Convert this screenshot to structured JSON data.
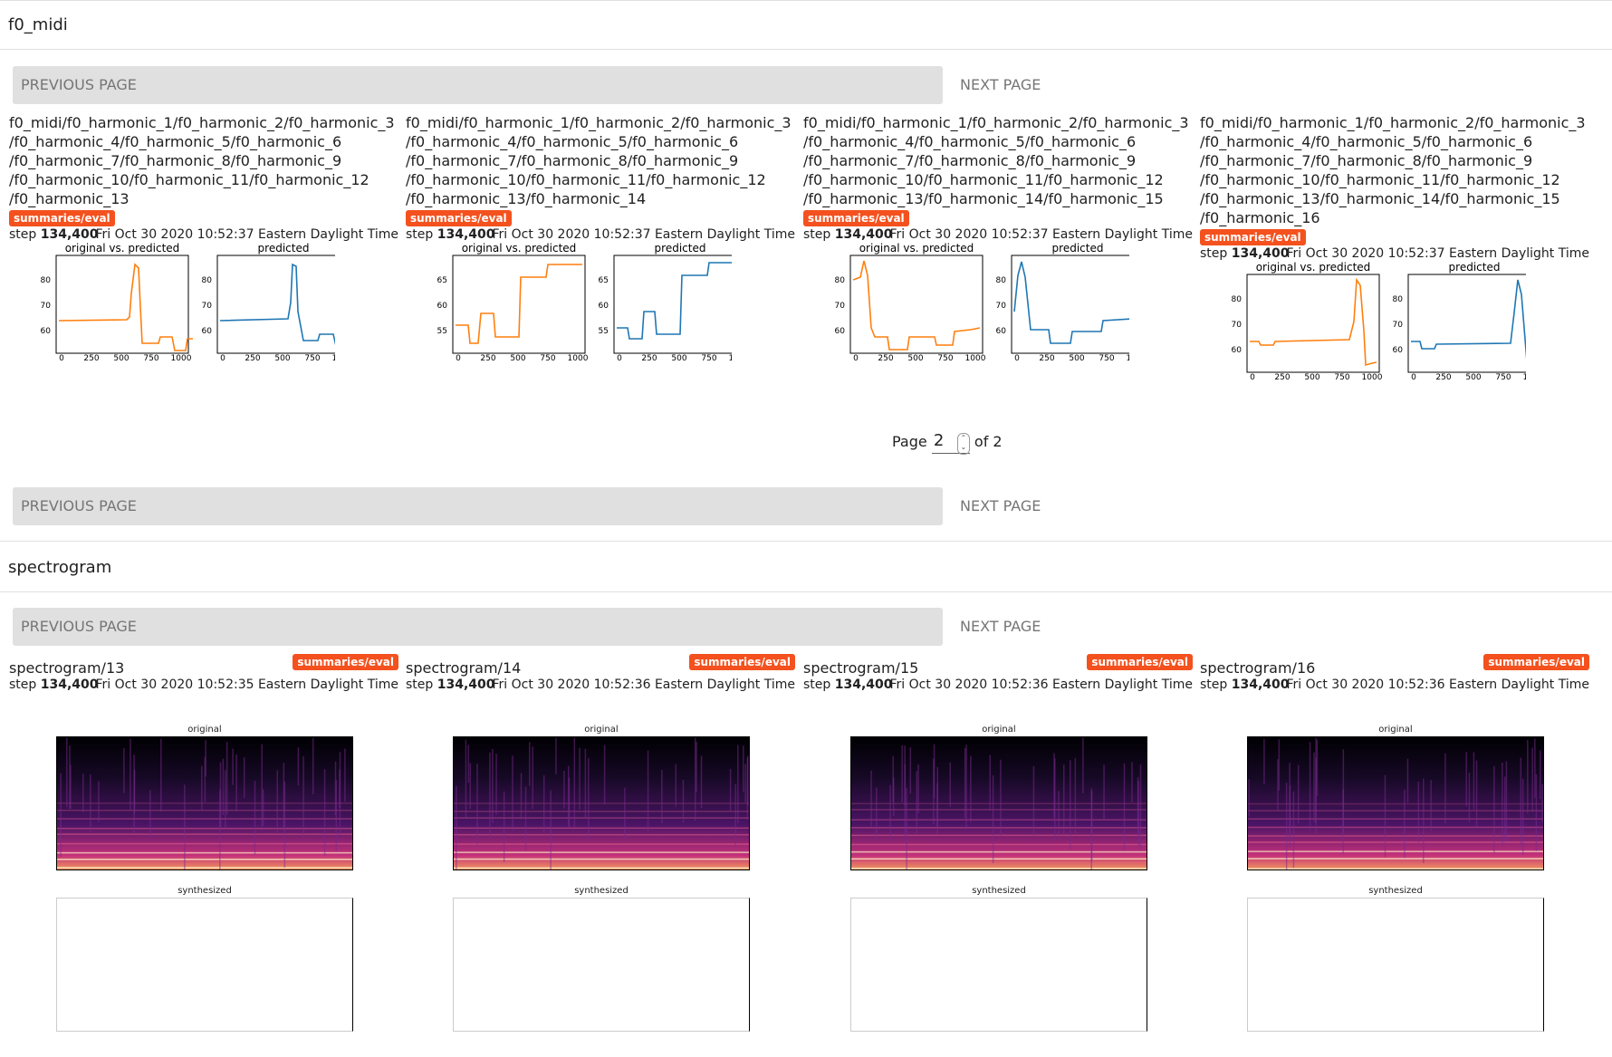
{
  "sections": {
    "f0": {
      "title": "f0_midi",
      "prev_label": "PREVIOUS PAGE",
      "next_label": "NEXT PAGE",
      "cards": [
        {
          "title": "f0_midi/f0_harmonic_1/f0_harmonic_2/f0_harmonic_3/f0_harmonic_4/f0_harmonic_5/f0_harmonic_6/f0_harmonic_7/f0_harmonic_8/f0_harmonic_9/f0_harmonic_10/f0_harmonic_11/f0_harmonic_12/f0_harmonic_13",
          "title_lines": [
            "f0_midi/f0_harmonic_1/f0_harmonic_2/f0_harmonic_3",
            "/f0_harmonic_4/f0_harmonic_5/f0_harmonic_6",
            "/f0_harmonic_7/f0_harmonic_8/f0_harmonic_9",
            "/f0_harmonic_10/f0_harmonic_11/f0_harmonic_12",
            "/f0_harmonic_13"
          ],
          "tag": "summaries/eval",
          "step_label": "step",
          "step": "134,400",
          "time": "Fri Oct 30 2020 10:52:37 Eastern Daylight Time",
          "plot_left_title": "original vs. predicted",
          "plot_right_title": "predicted",
          "yticks": [
            "80",
            "70",
            "60"
          ],
          "xticks": [
            "0",
            "250",
            "500",
            "750",
            "1000"
          ]
        },
        {
          "title": "f0_midi/f0_harmonic_1/f0_harmonic_2/f0_harmonic_3/f0_harmonic_4/f0_harmonic_5/f0_harmonic_6/f0_harmonic_7/f0_harmonic_8/f0_harmonic_9/f0_harmonic_10/f0_harmonic_11/f0_harmonic_12/f0_harmonic_13/f0_harmonic_14",
          "title_lines": [
            "f0_midi/f0_harmonic_1/f0_harmonic_2/f0_harmonic_3",
            "/f0_harmonic_4/f0_harmonic_5/f0_harmonic_6",
            "/f0_harmonic_7/f0_harmonic_8/f0_harmonic_9",
            "/f0_harmonic_10/f0_harmonic_11/f0_harmonic_12",
            "/f0_harmonic_13/f0_harmonic_14"
          ],
          "tag": "summaries/eval",
          "step_label": "step",
          "step": "134,400",
          "time": "Fri Oct 30 2020 10:52:37 Eastern Daylight Time",
          "plot_left_title": "original vs. predicted",
          "plot_right_title": "predicted",
          "yticks": [
            "65",
            "60",
            "55"
          ],
          "xticks": [
            "0",
            "250",
            "500",
            "750",
            "1000"
          ]
        },
        {
          "title": "f0_midi/f0_harmonic_1/f0_harmonic_2/f0_harmonic_3/f0_harmonic_4/f0_harmonic_5/f0_harmonic_6/f0_harmonic_7/f0_harmonic_8/f0_harmonic_9/f0_harmonic_10/f0_harmonic_11/f0_harmonic_12/f0_harmonic_13/f0_harmonic_14/f0_harmonic_15",
          "title_lines": [
            "f0_midi/f0_harmonic_1/f0_harmonic_2/f0_harmonic_3",
            "/f0_harmonic_4/f0_harmonic_5/f0_harmonic_6",
            "/f0_harmonic_7/f0_harmonic_8/f0_harmonic_9",
            "/f0_harmonic_10/f0_harmonic_11/f0_harmonic_12",
            "/f0_harmonic_13/f0_harmonic_14/f0_harmonic_15"
          ],
          "tag": "summaries/eval",
          "step_label": "step",
          "step": "134,400",
          "time": "Fri Oct 30 2020 10:52:37 Eastern Daylight Time",
          "plot_left_title": "original vs. predicted",
          "plot_right_title": "predicted",
          "yticks": [
            "80",
            "70",
            "60"
          ],
          "xticks": [
            "0",
            "250",
            "500",
            "750",
            "1000"
          ]
        },
        {
          "title": "f0_midi/f0_harmonic_1/f0_harmonic_2/f0_harmonic_3/f0_harmonic_4/f0_harmonic_5/f0_harmonic_6/f0_harmonic_7/f0_harmonic_8/f0_harmonic_9/f0_harmonic_10/f0_harmonic_11/f0_harmonic_12/f0_harmonic_13/f0_harmonic_14/f0_harmonic_15/f0_harmonic_16",
          "title_lines": [
            "f0_midi/f0_harmonic_1/f0_harmonic_2/f0_harmonic_3",
            "/f0_harmonic_4/f0_harmonic_5/f0_harmonic_6",
            "/f0_harmonic_7/f0_harmonic_8/f0_harmonic_9",
            "/f0_harmonic_10/f0_harmonic_11/f0_harmonic_12",
            "/f0_harmonic_13/f0_harmonic_14/f0_harmonic_15",
            "/f0_harmonic_16"
          ],
          "tag": "summaries/eval",
          "step_label": "step",
          "step": "134,400",
          "time": "Fri Oct 30 2020 10:52:37 Eastern Daylight Time",
          "plot_left_title": "original vs. predicted",
          "plot_right_title": "predicted",
          "yticks": [
            "80",
            "70",
            "60"
          ],
          "xticks": [
            "0",
            "250",
            "500",
            "750",
            "1000"
          ]
        }
      ],
      "paging": {
        "page_label": "Page",
        "page_value": "2",
        "of_label": "of 2"
      }
    },
    "spectrogram": {
      "title": "spectrogram",
      "prev_label": "PREVIOUS PAGE",
      "next_label": "NEXT PAGE",
      "cards": [
        {
          "title": "spectrogram/13",
          "tag": "summaries/eval",
          "step_label": "step",
          "step": "134,400",
          "time": "Fri Oct 30 2020 10:52:35 Eastern Daylight Time",
          "top_title": "original",
          "bottom_title": "synthesized"
        },
        {
          "title": "spectrogram/14",
          "tag": "summaries/eval",
          "step_label": "step",
          "step": "134,400",
          "time": "Fri Oct 30 2020 10:52:36 Eastern Daylight Time",
          "top_title": "original",
          "bottom_title": "synthesized"
        },
        {
          "title": "spectrogram/15",
          "tag": "summaries/eval",
          "step_label": "step",
          "step": "134,400",
          "time": "Fri Oct 30 2020 10:52:36 Eastern Daylight Time",
          "top_title": "original",
          "bottom_title": "synthesized"
        },
        {
          "title": "spectrogram/16",
          "tag": "summaries/eval",
          "step_label": "step",
          "step": "134,400",
          "time": "Fri Oct 30 2020 10:52:36 Eastern Daylight Time",
          "top_title": "original",
          "bottom_title": "synthesized"
        }
      ]
    }
  },
  "colors": {
    "original_line": "#ff7f0e",
    "predicted_line": "#1f77b4",
    "tag_bg": "#f4511e",
    "button_bg": "#e0e0e0"
  }
}
